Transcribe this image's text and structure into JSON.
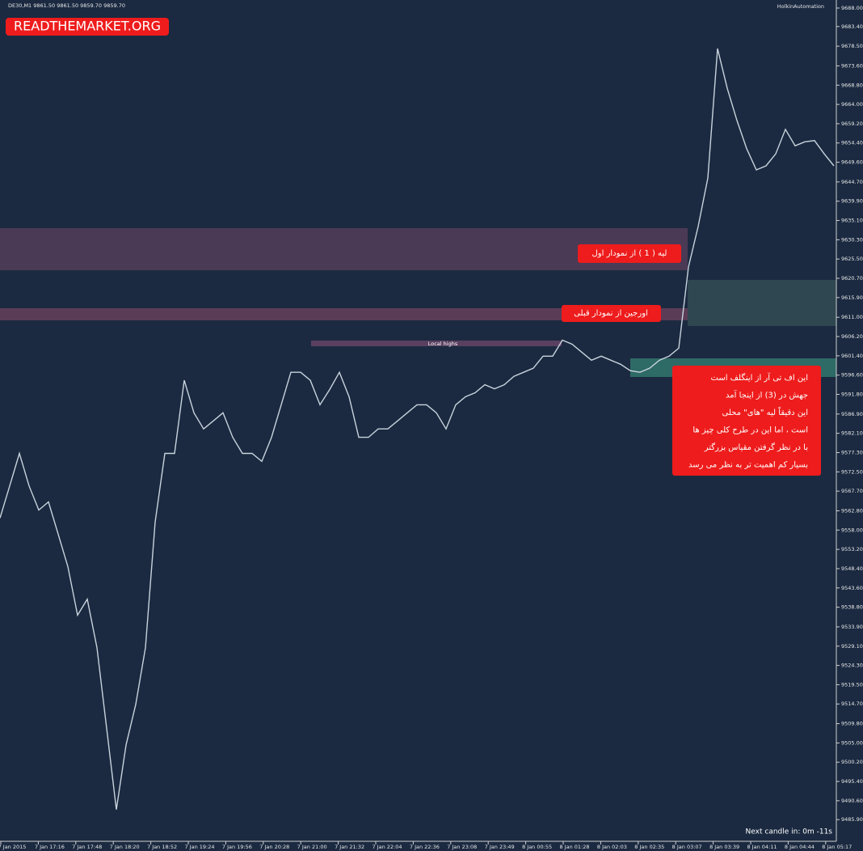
{
  "chart_data": {
    "type": "line",
    "symbol_info": "DE30,M1  9861.50 9861.50 9859.70 9859.70",
    "indicator": "HolkinAutomation",
    "watermark": "READTHEMARKET.ORG",
    "annotations": [
      "لیه ( 1 ) از نمودار اول",
      "اورجین از نمودار قبلی",
      "Local highs"
    ],
    "note_lines": [
      "این اف تی آر از اینگلف است",
      "جهش در (3) از اینجا آمد",
      "این دقیقاً لیه \"های\" محلی",
      "است ، اما این در طرح کلی چیز ها",
      "با در نظر گرفتن مقیاس بزرگتر",
      "بسیار کم اهمیت تر به نظر می رسد"
    ],
    "footer": "Next candle in: 0m -11s",
    "color": "#c9d3dd",
    "x_labels": [
      "7 Jan 2015",
      "7 Jan 17:16",
      "7 Jan 17:48",
      "7 Jan 18:20",
      "7 Jan 18:52",
      "7 Jan 19:24",
      "7 Jan 19:56",
      "7 Jan 20:28",
      "7 Jan 21:00",
      "7 Jan 21:32",
      "7 Jan 22:04",
      "7 Jan 22:36",
      "7 Jan 23:08",
      "7 Jan 23:49",
      "8 Jan 00:55",
      "8 Jan 01:28",
      "8 Jan 02:03",
      "8 Jan 02:35",
      "8 Jan 03:07",
      "8 Jan 03:39",
      "8 Jan 04:11",
      "8 Jan 04:44",
      "8 Jan 05:17"
    ],
    "values": [
      9561.0,
      9569.0,
      9577.1,
      9569.0,
      9563.0,
      9565.0,
      9557.0,
      9548.9,
      9536.8,
      9540.8,
      9528.7,
      9508.6,
      9488.4,
      9504.5,
      9514.6,
      9528.7,
      9560.0,
      9577.1,
      9577.1,
      9595.3,
      9587.2,
      9583.2,
      9585.2,
      9587.2,
      9581.1,
      9577.1,
      9577.1,
      9575.1,
      9581.1,
      9589.2,
      9597.3,
      9597.3,
      9595.3,
      9589.2,
      9593.0,
      9597.3,
      9591.2,
      9581.1,
      9581.1,
      9583.2,
      9583.2,
      9585.2,
      9587.2,
      9589.2,
      9589.2,
      9587.2,
      9583.2,
      9589.2,
      9591.2,
      9592.2,
      9594.2,
      9593.2,
      9594.2,
      9596.3,
      9597.3,
      9598.3,
      9601.3,
      9601.3,
      9605.3,
      9604.3,
      9602.3,
      9600.3,
      9601.3,
      9600.3,
      9599.3,
      9597.7,
      9597.3,
      9598.3,
      9600.3,
      9601.3,
      9603.3,
      9623.5,
      9633.6,
      9645.7,
      9677.9,
      9668.0,
      9660.0,
      9653.0,
      9647.7,
      9648.7,
      9651.7,
      9657.8,
      9653.7,
      9654.7,
      9655.0,
      9651.7,
      9648.7
    ],
    "ylim": [
      9479.9,
      9689.4
    ],
    "yticks": [
      {
        "value": 9688.0,
        "label": "9688.00"
      },
      {
        "value": 9683.4,
        "label": "9683.40"
      },
      {
        "value": 9678.5,
        "label": "9678.50"
      },
      {
        "value": 9673.6,
        "label": "9673.60"
      },
      {
        "value": 9668.8,
        "label": "9668.80"
      },
      {
        "value": 9664.0,
        "label": "9664.00"
      },
      {
        "value": 9659.2,
        "label": "9659.20"
      },
      {
        "value": 9654.4,
        "label": "9654.40"
      },
      {
        "value": 9649.6,
        "label": "9649.60"
      },
      {
        "value": 9644.7,
        "label": "9644.70"
      },
      {
        "value": 9639.9,
        "label": "9639.90"
      },
      {
        "value": 9635.1,
        "label": "9635.10"
      },
      {
        "value": 9630.3,
        "label": "9630.30"
      },
      {
        "value": 9625.5,
        "label": "9625.50"
      },
      {
        "value": 9620.7,
        "label": "9620.70"
      },
      {
        "value": 9615.9,
        "label": "9615.90"
      },
      {
        "value": 9611.0,
        "label": "9611.00"
      },
      {
        "value": 9606.2,
        "label": "9606.20"
      },
      {
        "value": 9601.4,
        "label": "9601.40"
      },
      {
        "value": 9596.6,
        "label": "9596.60"
      },
      {
        "value": 9591.8,
        "label": "9591.80"
      },
      {
        "value": 9586.9,
        "label": "9586.90"
      },
      {
        "value": 9582.1,
        "label": "9582.10"
      },
      {
        "value": 9577.3,
        "label": "9577.30"
      },
      {
        "value": 9572.5,
        "label": "9572.50"
      },
      {
        "value": 9567.7,
        "label": "9567.70"
      },
      {
        "value": 9562.8,
        "label": "9562.80"
      },
      {
        "value": 9558.0,
        "label": "9558.00"
      },
      {
        "value": 9553.2,
        "label": "9553.20"
      },
      {
        "value": 9548.4,
        "label": "9548.40"
      },
      {
        "value": 9543.6,
        "label": "9543.60"
      },
      {
        "value": 9538.8,
        "label": "9538.80"
      },
      {
        "value": 9533.9,
        "label": "9533.90"
      },
      {
        "value": 9529.1,
        "label": "9529.10"
      },
      {
        "value": 9524.3,
        "label": "9524.30"
      },
      {
        "value": 9519.5,
        "label": "9519.50"
      },
      {
        "value": 9514.7,
        "label": "9514.70"
      },
      {
        "value": 9509.8,
        "label": "9509.80"
      },
      {
        "value": 9505.0,
        "label": "9505.00"
      },
      {
        "value": 9500.2,
        "label": "9500.20"
      },
      {
        "value": 9495.4,
        "label": "9495.40"
      },
      {
        "value": 9490.6,
        "label": "9490.60"
      },
      {
        "value": 9485.9,
        "label": "9485.90"
      }
    ]
  }
}
